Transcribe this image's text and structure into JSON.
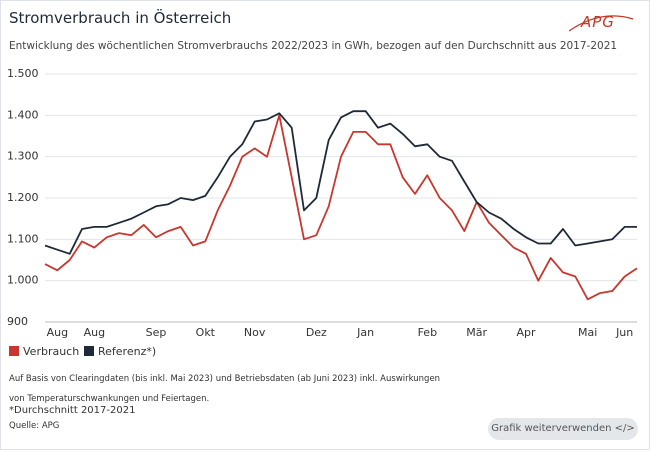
{
  "chart_data": {
    "type": "line",
    "title": "Stromverbrauch in Österreich",
    "logo": "APG",
    "subtitle": "Entwicklung des wöchentlichen Stromverbrauchs 2022/2023 in GWh, bezogen auf den Durchschnitt aus 2017-2021",
    "categories": [
      null,
      "Aug",
      null,
      null,
      "Aug",
      null,
      null,
      null,
      null,
      "Sep",
      null,
      null,
      null,
      "Okt",
      null,
      null,
      null,
      "Nov",
      null,
      null,
      null,
      null,
      "Dez",
      null,
      null,
      null,
      "Jan",
      null,
      null,
      null,
      null,
      "Feb",
      null,
      null,
      null,
      "Mär",
      null,
      null,
      null,
      "Apr",
      null,
      null,
      null,
      null,
      "Mai",
      null,
      null,
      "Jun",
      null
    ],
    "series": [
      {
        "name": "Verbrauch",
        "color": "#c8372d",
        "values": [
          1040,
          1025,
          1050,
          1095,
          1080,
          1105,
          1115,
          1110,
          1135,
          1105,
          1120,
          1130,
          1085,
          1095,
          1170,
          1230,
          1300,
          1320,
          1300,
          1400,
          1250,
          1100,
          1110,
          1180,
          1300,
          1360,
          1360,
          1330,
          1330,
          1250,
          1210,
          1255,
          1200,
          1170,
          1120,
          1190,
          1140,
          1110,
          1080,
          1065,
          1000,
          1055,
          1020,
          1010,
          955,
          970,
          975,
          1010,
          1030
        ]
      },
      {
        "name": "Referenz*)",
        "color": "#1e2a38",
        "values": [
          1085,
          1075,
          1065,
          1125,
          1130,
          1130,
          1140,
          1150,
          1165,
          1180,
          1185,
          1200,
          1195,
          1205,
          1250,
          1300,
          1330,
          1385,
          1390,
          1405,
          1370,
          1170,
          1200,
          1340,
          1395,
          1410,
          1410,
          1370,
          1380,
          1355,
          1325,
          1330,
          1300,
          1290,
          1240,
          1190,
          1165,
          1150,
          1125,
          1105,
          1090,
          1090,
          1125,
          1085,
          1090,
          1095,
          1100,
          1130,
          1130
        ]
      }
    ],
    "ylim": [
      900,
      1500
    ],
    "yticks": [
      900,
      {
        "value": 1000,
        "label": "1.000"
      },
      {
        "value": 1100,
        "label": "1.100"
      },
      {
        "value": 1200,
        "label": "1.200"
      },
      {
        "value": 1300,
        "label": "1.300"
      },
      {
        "value": 1400,
        "label": "1.400"
      },
      {
        "value": 1500,
        "label": "1.500"
      }
    ],
    "grid": true,
    "note": "Auf Basis von Clearingdaten (bis inkl. Mai 2023) und Betriebsdaten (ab Juni 2023) inkl. Auswirkungen von Temperaturschwankungen und Feiertagen.",
    "footnote": "*Durchschnitt 2017-2021",
    "source": "Quelle: APG",
    "button": "Grafik weiterverwenden </>"
  }
}
